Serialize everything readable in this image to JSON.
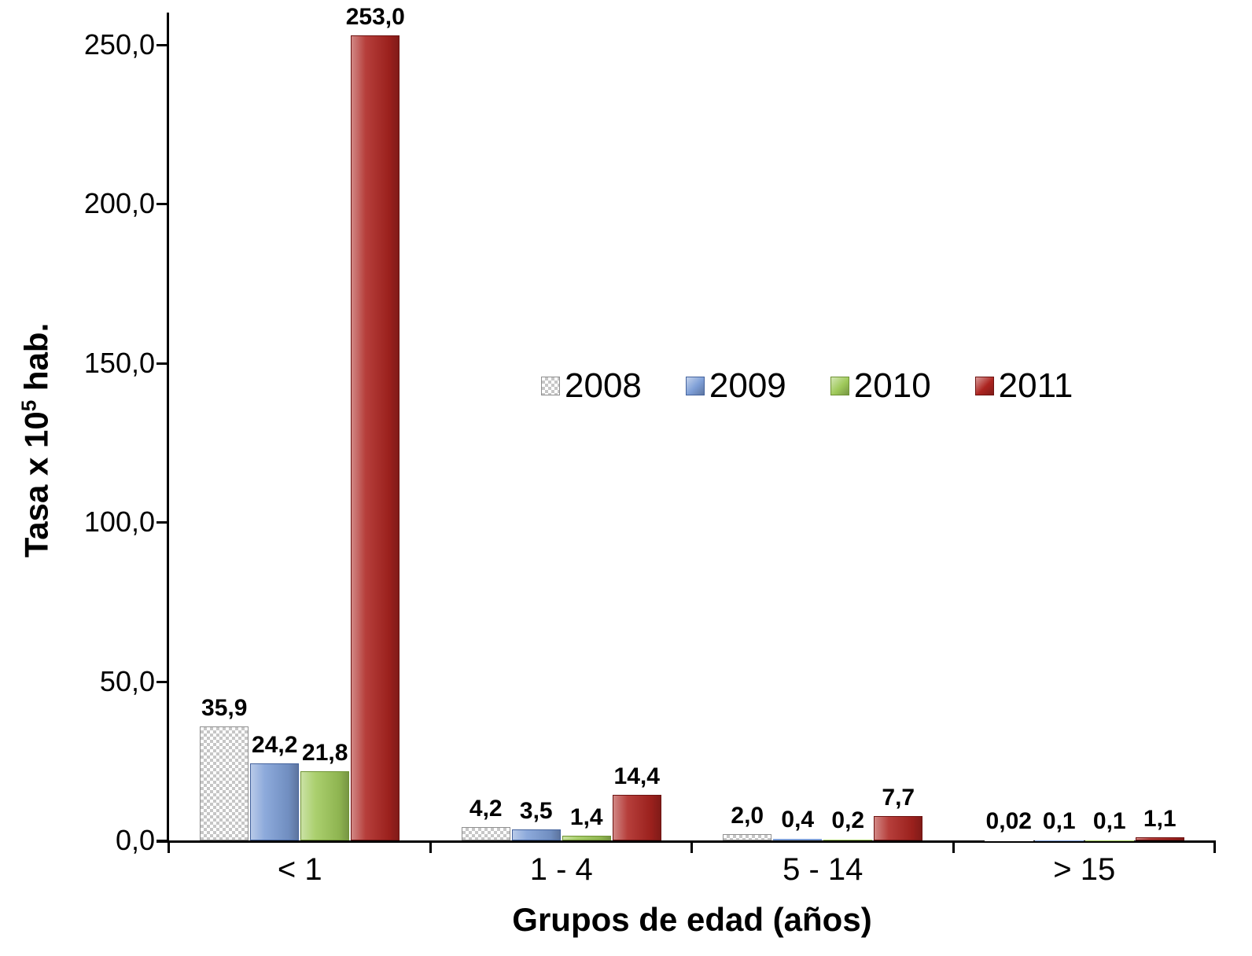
{
  "chart_data": {
    "type": "bar",
    "title": "",
    "xlabel": "Grupos de edad (años)",
    "ylabel": {
      "prefix": "Tasa x 10",
      "sup": "5",
      "suffix": " hab."
    },
    "categories": [
      "< 1",
      "1 - 4",
      "5 - 14",
      "> 15"
    ],
    "series": [
      {
        "name": "2008",
        "pattern": true,
        "color": "#ffffff",
        "border": "#8f8f8f",
        "values": [
          35.9,
          4.2,
          2.0,
          0.02
        ],
        "labels": [
          "35,9",
          "4,2",
          "2,0",
          "0,02"
        ]
      },
      {
        "name": "2009",
        "pattern": false,
        "color": "#7d9ed6",
        "border": "#44639d",
        "values": [
          24.2,
          3.5,
          0.4,
          0.1
        ],
        "labels": [
          "24,2",
          "3,5",
          "0,4",
          "0,1"
        ]
      },
      {
        "name": "2010",
        "pattern": false,
        "color": "#9fc95a",
        "border": "#6f9334",
        "values": [
          21.8,
          1.4,
          0.2,
          0.1
        ],
        "labels": [
          "21,8",
          "1,4",
          "0,2",
          "0,1"
        ]
      },
      {
        "name": "2011",
        "pattern": false,
        "color": "#ac2420",
        "border": "#6e1412",
        "values": [
          253.0,
          14.4,
          7.7,
          1.1
        ],
        "labels": [
          "253,0",
          "14,4",
          "7,7",
          "1,1"
        ]
      }
    ],
    "y_ticks": [
      "0,0",
      "50,0",
      "100,0",
      "150,0",
      "200,0",
      "250,0"
    ],
    "y_tick_values": [
      0,
      50,
      100,
      150,
      200,
      250
    ],
    "axis_max": 250,
    "ylim": [
      0,
      253
    ],
    "grid": false,
    "legend_position": "center"
  }
}
